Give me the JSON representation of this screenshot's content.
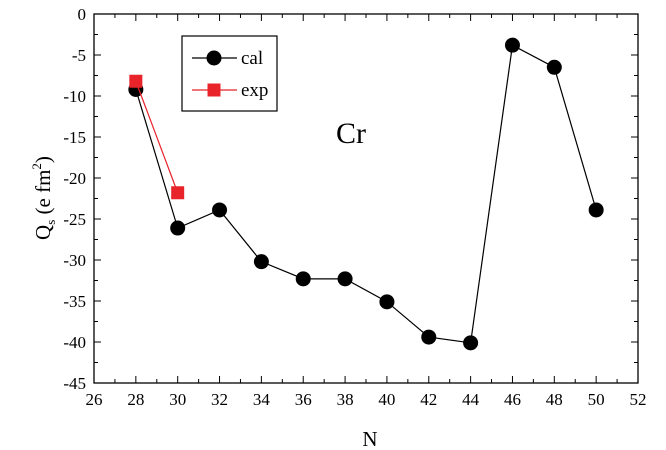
{
  "chart_data": {
    "type": "line",
    "xlabel": "N",
    "ylabel": "Q_s (e fm^2)",
    "ylabel_parts": {
      "q": "Q",
      "sub": "s",
      "mid": " (e fm",
      "sup": "2",
      "end": ")"
    },
    "xlim": [
      26,
      52
    ],
    "ylim": [
      -45,
      0
    ],
    "xticks": [
      26,
      28,
      30,
      32,
      34,
      36,
      38,
      40,
      42,
      44,
      46,
      48,
      50,
      52
    ],
    "yticks": [
      0,
      -5,
      -10,
      -15,
      -20,
      -25,
      -30,
      -35,
      -40,
      -45
    ],
    "grid": false,
    "legend_position": "top-left",
    "annotation": "Cr",
    "series": [
      {
        "name": "cal",
        "color": "#000000",
        "marker": "circle",
        "x": [
          28,
          30,
          32,
          34,
          36,
          38,
          40,
          42,
          44,
          46,
          48,
          50
        ],
        "y": [
          -9.2,
          -26.1,
          -23.9,
          -30.2,
          -32.3,
          -32.3,
          -35.1,
          -39.4,
          -40.1,
          -3.8,
          -6.5,
          -23.9
        ]
      },
      {
        "name": "exp",
        "color": "#e8232a",
        "marker": "square",
        "x": [
          28,
          30
        ],
        "y": [
          -8.2,
          -21.8
        ]
      }
    ]
  }
}
